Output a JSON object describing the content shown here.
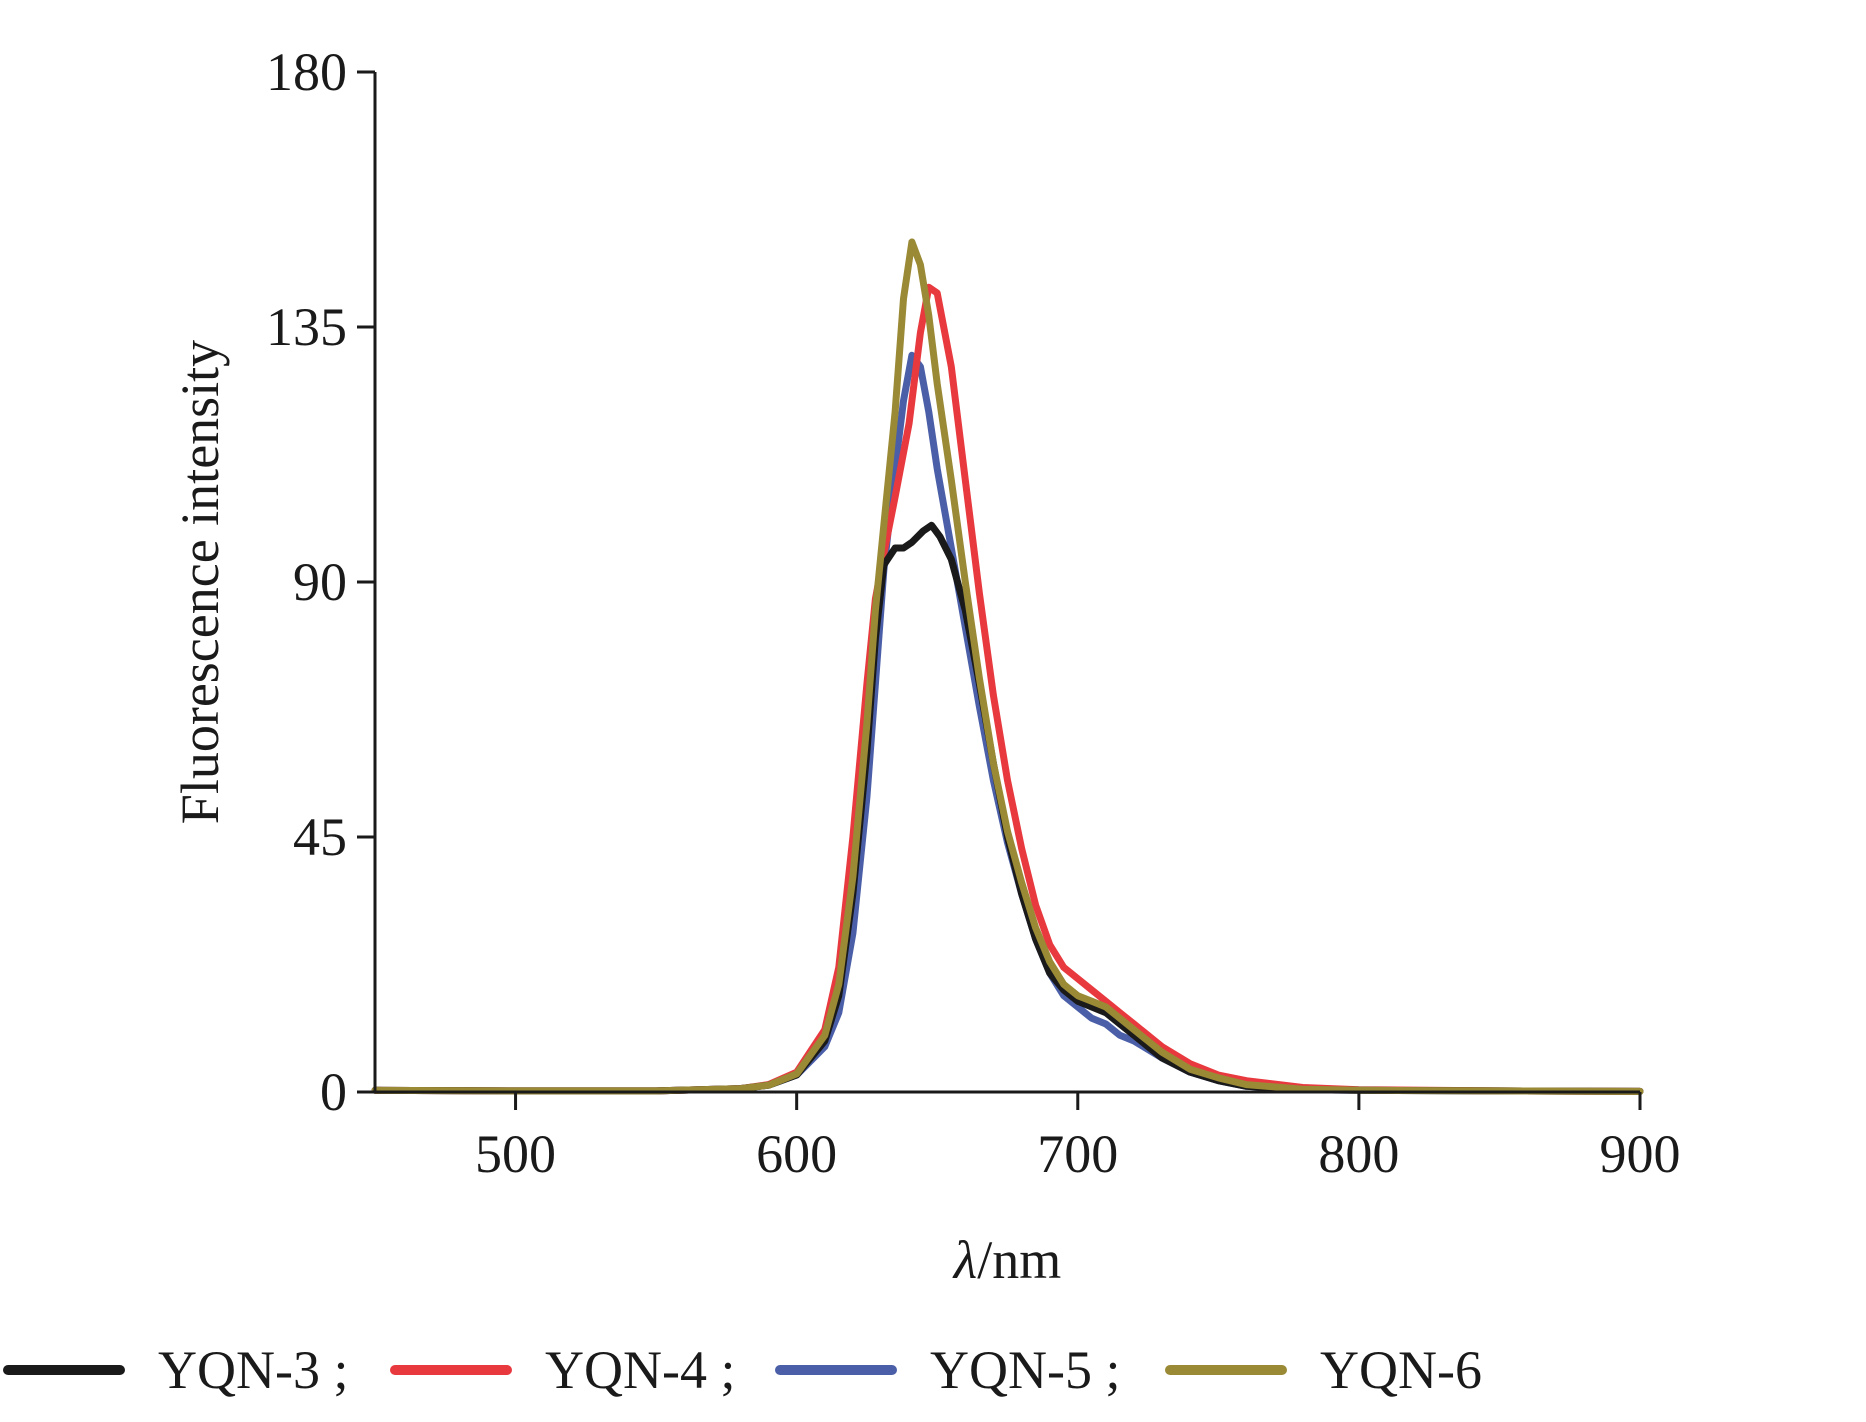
{
  "chart_data": {
    "type": "line",
    "title": "",
    "xlabel_symbol": "λ",
    "xlabel_unit": "/nm",
    "ylabel": "Fluorescence intensity",
    "xlim": [
      450,
      900
    ],
    "ylim": [
      0,
      180
    ],
    "x_ticks": [
      500,
      600,
      700,
      800,
      900
    ],
    "y_ticks": [
      0,
      45,
      90,
      135,
      180
    ],
    "grid": false,
    "legend_position": "bottom",
    "series": [
      {
        "name": "YQN-3",
        "legend_text": "YQN-3 ;",
        "color": "#1a1a1a",
        "points": [
          [
            450,
            0.3
          ],
          [
            500,
            0.2
          ],
          [
            550,
            0.2
          ],
          [
            580,
            0.6
          ],
          [
            590,
            1.2
          ],
          [
            600,
            3
          ],
          [
            610,
            9
          ],
          [
            615,
            17
          ],
          [
            620,
            35
          ],
          [
            625,
            60
          ],
          [
            628,
            80
          ],
          [
            631,
            93
          ],
          [
            635,
            96
          ],
          [
            638,
            96
          ],
          [
            641,
            97
          ],
          [
            645,
            99
          ],
          [
            648,
            100
          ],
          [
            651,
            98
          ],
          [
            655,
            94
          ],
          [
            660,
            85
          ],
          [
            665,
            72
          ],
          [
            670,
            58
          ],
          [
            675,
            45
          ],
          [
            680,
            35
          ],
          [
            685,
            27
          ],
          [
            690,
            21
          ],
          [
            695,
            18
          ],
          [
            700,
            16
          ],
          [
            705,
            15
          ],
          [
            710,
            14
          ],
          [
            715,
            12
          ],
          [
            720,
            10
          ],
          [
            730,
            6
          ],
          [
            740,
            3.5
          ],
          [
            750,
            2
          ],
          [
            760,
            1
          ],
          [
            780,
            0.4
          ],
          [
            800,
            0.3
          ],
          [
            850,
            0.2
          ],
          [
            900,
            0.1
          ]
        ]
      },
      {
        "name": "YQN-4",
        "legend_text": "YQN-4 ;",
        "color": "#e8393f",
        "points": [
          [
            450,
            0.3
          ],
          [
            500,
            0.2
          ],
          [
            550,
            0.2
          ],
          [
            580,
            0.6
          ],
          [
            590,
            1.3
          ],
          [
            600,
            3.5
          ],
          [
            610,
            11
          ],
          [
            615,
            22
          ],
          [
            620,
            45
          ],
          [
            625,
            72
          ],
          [
            628,
            87
          ],
          [
            631,
            95
          ],
          [
            635,
            105
          ],
          [
            640,
            118
          ],
          [
            644,
            134
          ],
          [
            647,
            142
          ],
          [
            650,
            141
          ],
          [
            655,
            128
          ],
          [
            660,
            108
          ],
          [
            665,
            88
          ],
          [
            670,
            70
          ],
          [
            675,
            55
          ],
          [
            680,
            43
          ],
          [
            685,
            33
          ],
          [
            690,
            26
          ],
          [
            695,
            22
          ],
          [
            700,
            20
          ],
          [
            705,
            18
          ],
          [
            710,
            16
          ],
          [
            715,
            14
          ],
          [
            720,
            12
          ],
          [
            730,
            8
          ],
          [
            740,
            5
          ],
          [
            750,
            3
          ],
          [
            760,
            2
          ],
          [
            780,
            0.8
          ],
          [
            800,
            0.4
          ],
          [
            850,
            0.2
          ],
          [
            900,
            0.1
          ]
        ]
      },
      {
        "name": "YQN-5",
        "legend_text": "YQN-5 ;",
        "color": "#4a5fa8",
        "points": [
          [
            450,
            0.3
          ],
          [
            500,
            0.2
          ],
          [
            550,
            0.2
          ],
          [
            580,
            0.6
          ],
          [
            590,
            1.2
          ],
          [
            600,
            3
          ],
          [
            610,
            8
          ],
          [
            615,
            14
          ],
          [
            620,
            28
          ],
          [
            625,
            52
          ],
          [
            628,
            72
          ],
          [
            631,
            92
          ],
          [
            635,
            110
          ],
          [
            638,
            122
          ],
          [
            641,
            130
          ],
          [
            644,
            128
          ],
          [
            647,
            120
          ],
          [
            650,
            110
          ],
          [
            655,
            96
          ],
          [
            660,
            82
          ],
          [
            665,
            68
          ],
          [
            670,
            55
          ],
          [
            675,
            44
          ],
          [
            680,
            35
          ],
          [
            685,
            27
          ],
          [
            690,
            21
          ],
          [
            695,
            17
          ],
          [
            700,
            15
          ],
          [
            705,
            13
          ],
          [
            710,
            12
          ],
          [
            715,
            10
          ],
          [
            720,
            9
          ],
          [
            730,
            6
          ],
          [
            740,
            3.5
          ],
          [
            750,
            2
          ],
          [
            760,
            1
          ],
          [
            780,
            0.4
          ],
          [
            800,
            0.3
          ],
          [
            850,
            0.2
          ],
          [
            900,
            0.1
          ]
        ]
      },
      {
        "name": "YQN-6",
        "legend_text": "YQN-6",
        "color": "#9a8a35",
        "points": [
          [
            450,
            0.3
          ],
          [
            500,
            0.2
          ],
          [
            550,
            0.2
          ],
          [
            580,
            0.6
          ],
          [
            590,
            1.2
          ],
          [
            600,
            3.2
          ],
          [
            610,
            10
          ],
          [
            615,
            19
          ],
          [
            620,
            38
          ],
          [
            625,
            65
          ],
          [
            628,
            85
          ],
          [
            631,
            100
          ],
          [
            635,
            120
          ],
          [
            638,
            140
          ],
          [
            641,
            150
          ],
          [
            644,
            146
          ],
          [
            647,
            137
          ],
          [
            650,
            125
          ],
          [
            655,
            108
          ],
          [
            660,
            90
          ],
          [
            665,
            73
          ],
          [
            670,
            58
          ],
          [
            675,
            46
          ],
          [
            680,
            37
          ],
          [
            685,
            29
          ],
          [
            690,
            23
          ],
          [
            695,
            19
          ],
          [
            700,
            17
          ],
          [
            705,
            16
          ],
          [
            710,
            15
          ],
          [
            715,
            13
          ],
          [
            720,
            11
          ],
          [
            730,
            7
          ],
          [
            740,
            4
          ],
          [
            750,
            2.5
          ],
          [
            760,
            1.3
          ],
          [
            780,
            0.5
          ],
          [
            800,
            0.3
          ],
          [
            850,
            0.2
          ],
          [
            900,
            0.1
          ]
        ]
      }
    ]
  }
}
